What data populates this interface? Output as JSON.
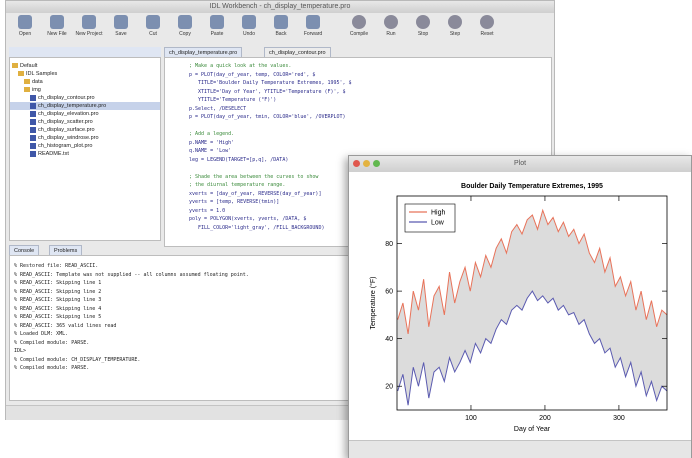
{
  "workbench": {
    "title": "IDL Workbench - ch_display_temperature.pro",
    "toolbar": [
      "Open",
      "New File",
      "New Project",
      "Save",
      "Cut",
      "Copy",
      "Paste",
      "Undo",
      "Back",
      "Forward",
      "Compile",
      "Run",
      "Stop",
      "Step",
      "Reset"
    ],
    "tree": [
      {
        "label": "Default",
        "kind": "folder"
      },
      {
        "label": "IDL Samples",
        "kind": "folder"
      },
      {
        "label": "data",
        "kind": "folder"
      },
      {
        "label": "img",
        "kind": "folder"
      },
      {
        "label": "ch_display_contour.pro",
        "kind": "file"
      },
      {
        "label": "ch_display_temperature.pro",
        "kind": "file"
      },
      {
        "label": "ch_display_elevation.pro",
        "kind": "file"
      },
      {
        "label": "ch_display_scatter.pro",
        "kind": "file"
      },
      {
        "label": "ch_display_surface.pro",
        "kind": "file"
      },
      {
        "label": "ch_display_windrose.pro",
        "kind": "file"
      },
      {
        "label": "ch_histogram_plot.pro",
        "kind": "file"
      },
      {
        "label": "README.txt",
        "kind": "file"
      }
    ],
    "tabs": [
      "ch_display_temperature.pro",
      "ch_display_contour.pro"
    ],
    "code": [
      "; Make a quick look at the values.",
      "p = PLOT(day_of_year, temp, COLOR='red', $",
      "   TITLE='Boulder Daily Temperature Extremes, 1995', $",
      "   XTITLE='Day of Year', YTITLE='Temperature (F)', $",
      "   YTITLE='Temperature (°F)')",
      "p.Select, /DESELECT",
      "p = PLOT(day_of_year, tmin, COLOR='blue', /OVERPLOT)",
      "",
      "; Add a legend.",
      "p.NAME = 'High'",
      "q.NAME = 'Low'",
      "leg = LEGEND(TARGET=[p,q], /DATA)",
      "",
      "; Shade the area between the curves to show",
      "; the diurnal temperature range.",
      "xverts = [day_of_year, REVERSE(day_of_year)]",
      "yverts = [temp, REVERSE(tmin)]",
      "yverts = 1.0",
      "poly = POLYGON(xverts, yverts, /DATA, $",
      "   FILL_COLOR='light_gray', /FILL_BACKGROUND)"
    ],
    "console_tabs": [
      "Console",
      "Problems"
    ],
    "console": [
      "% Restored file: READ_ASCII.",
      "% READ_ASCII: Template was not supplied -- all columns assumed floating point.",
      "% READ_ASCII: Skipping line 1",
      "% READ_ASCII: Skipping line 2",
      "% READ_ASCII: Skipping line 3",
      "% READ_ASCII: Skipping line 4",
      "% READ_ASCII: Skipping line 5",
      "% READ_ASCII: 365 valid lines read",
      "% Loaded DLM: XML.",
      "% Compiled module: PARSE.",
      "IDL>",
      "% Compiled module: CH_DISPLAY_TEMPERATURE.",
      "% Compiled module: PARSE."
    ]
  },
  "chart_data": {
    "type": "line",
    "window_title": "Plot",
    "title": "Boulder Daily Temperature Extremes, 1995",
    "x_label": "Day of Year",
    "y_label": "Temperature (°F)",
    "x": [
      1,
      8,
      15,
      22,
      29,
      36,
      43,
      50,
      57,
      64,
      71,
      78,
      85,
      92,
      99,
      106,
      113,
      120,
      127,
      134,
      141,
      148,
      155,
      162,
      169,
      176,
      183,
      190,
      197,
      204,
      211,
      218,
      225,
      232,
      239,
      246,
      253,
      260,
      267,
      274,
      281,
      288,
      295,
      302,
      309,
      316,
      323,
      330,
      337,
      344,
      351,
      358,
      365
    ],
    "series": [
      {
        "name": "High",
        "color": "#e8735a",
        "values": [
          48,
          55,
          42,
          60,
          52,
          65,
          45,
          58,
          62,
          50,
          68,
          55,
          64,
          70,
          60,
          72,
          66,
          75,
          70,
          78,
          82,
          76,
          85,
          88,
          84,
          90,
          92,
          86,
          94,
          88,
          91,
          85,
          89,
          83,
          86,
          80,
          84,
          76,
          72,
          78,
          68,
          74,
          62,
          66,
          58,
          64,
          52,
          60,
          48,
          56,
          45,
          52,
          50
        ]
      },
      {
        "name": "Low",
        "color": "#5b5bb0",
        "values": [
          18,
          25,
          12,
          28,
          20,
          30,
          15,
          26,
          28,
          22,
          32,
          26,
          30,
          35,
          30,
          38,
          34,
          40,
          38,
          44,
          48,
          46,
          52,
          54,
          52,
          57,
          60,
          56,
          58,
          55,
          57,
          52,
          54,
          50,
          51,
          46,
          48,
          42,
          38,
          40,
          34,
          36,
          28,
          32,
          24,
          30,
          20,
          26,
          16,
          22,
          14,
          20,
          18
        ]
      }
    ],
    "fill_color": "#dcdcdc",
    "xlim": [
      0,
      365
    ],
    "xticks": [
      100,
      200,
      300
    ],
    "ylim": [
      10,
      100
    ],
    "yticks": [
      20,
      40,
      60,
      80
    ],
    "legend": "top-left"
  }
}
